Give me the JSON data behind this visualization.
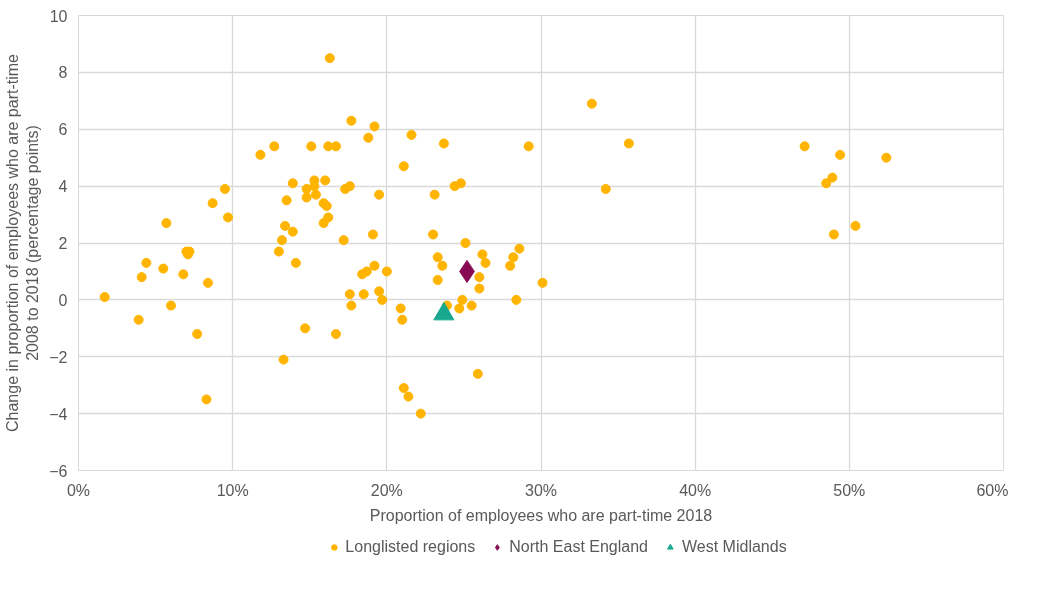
{
  "chart_data": {
    "type": "scatter",
    "xlabel": "Proportion of employees who are part-time 2018",
    "ylabel": "Change in proportion of employees who are part-time\n2008 to 2018 (percentage points)",
    "xlim": [
      0,
      60
    ],
    "ylim": [
      -6,
      10
    ],
    "xticks": [
      {
        "value": 0,
        "label": "0%"
      },
      {
        "value": 10,
        "label": "10%"
      },
      {
        "value": 20,
        "label": "20%"
      },
      {
        "value": 30,
        "label": "30%"
      },
      {
        "value": 40,
        "label": "40%"
      },
      {
        "value": 50,
        "label": "50%"
      },
      {
        "value": 60,
        "label": "60%"
      }
    ],
    "yticks": [
      -6,
      -4,
      -2,
      0,
      2,
      4,
      6,
      8,
      10
    ],
    "grid": true,
    "legend": "bottom",
    "series": [
      {
        "name": "Longlisted regions",
        "color": "#ffb400",
        "marker": "circle",
        "x": [
          1.7,
          3.9,
          4.1,
          4.4,
          5.5,
          5.7,
          6.0,
          6.8,
          7.0,
          7.1,
          7.2,
          7.7,
          8.3,
          8.4,
          8.7,
          9.5,
          9.7,
          11.8,
          12.7,
          13.0,
          13.2,
          13.3,
          13.4,
          13.5,
          13.9,
          13.9,
          14.1,
          14.7,
          14.8,
          14.8,
          15.1,
          15.3,
          15.3,
          15.4,
          15.9,
          15.9,
          16.0,
          16.1,
          16.2,
          16.2,
          16.3,
          16.7,
          16.7,
          17.2,
          17.3,
          17.6,
          17.6,
          17.7,
          17.7,
          18.4,
          18.5,
          18.7,
          18.8,
          19.1,
          19.2,
          19.2,
          19.5,
          19.5,
          19.7,
          20.0,
          20.9,
          21.0,
          21.1,
          21.1,
          21.4,
          21.6,
          22.2,
          23.0,
          23.1,
          23.3,
          23.3,
          23.6,
          23.7,
          23.9,
          24.4,
          24.7,
          24.8,
          24.9,
          25.1,
          25.5,
          25.9,
          26.0,
          26.0,
          26.2,
          26.4,
          28.0,
          28.2,
          28.4,
          28.6,
          29.2,
          30.1,
          33.3,
          34.2,
          35.7,
          47.1,
          48.5,
          48.9,
          49.0,
          49.4,
          50.4,
          52.4
        ],
        "values": [
          0.1,
          -0.7,
          0.8,
          1.3,
          1.1,
          2.7,
          -0.2,
          0.9,
          1.7,
          1.6,
          1.7,
          -1.2,
          -3.5,
          0.6,
          3.4,
          3.9,
          2.9,
          5.1,
          5.4,
          1.7,
          2.1,
          -2.1,
          2.6,
          3.5,
          4.1,
          2.4,
          1.3,
          -1.0,
          3.6,
          3.9,
          5.4,
          4.0,
          4.2,
          3.7,
          3.4,
          2.7,
          4.2,
          3.3,
          2.9,
          5.4,
          8.5,
          5.4,
          -1.2,
          2.1,
          3.9,
          4.0,
          0.2,
          6.3,
          -0.2,
          0.9,
          0.2,
          1.0,
          5.7,
          2.3,
          6.1,
          1.2,
          0.3,
          3.7,
          0.0,
          1.0,
          -0.3,
          -0.7,
          4.7,
          -3.1,
          -3.4,
          5.8,
          -4.0,
          2.3,
          3.7,
          1.5,
          0.7,
          1.2,
          5.5,
          -0.2,
          4.0,
          -0.3,
          4.1,
          0.0,
          2.0,
          -0.2,
          -2.6,
          0.8,
          0.4,
          1.6,
          1.3,
          1.2,
          1.5,
          0.0,
          1.8,
          5.4,
          0.6,
          6.9,
          3.9,
          5.5,
          5.4,
          4.1,
          4.3,
          2.3,
          5.1,
          2.6,
          5.0
        ]
      },
      {
        "name": "North East England",
        "color": "#870a52",
        "marker": "diamond",
        "x": [
          25.2
        ],
        "values": [
          1.0
        ]
      },
      {
        "name": "West Midlands",
        "color": "#17a88f",
        "marker": "triangle",
        "x": [
          23.7
        ],
        "values": [
          -0.5
        ]
      }
    ]
  }
}
